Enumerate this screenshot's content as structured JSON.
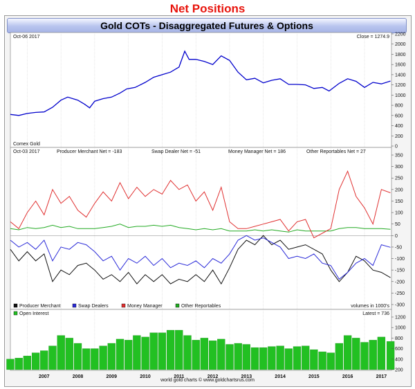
{
  "page": {
    "title": "Net Positions"
  },
  "header": {
    "title": "Gold COTs - Disaggregated Futures & Options"
  },
  "footer": {
    "credit": "world gold charts © www.goldchartsrus.com"
  },
  "colors": {
    "gold": "#0000cc",
    "producer": "#111111",
    "swap": "#2a2ad8",
    "money": "#e03030",
    "other": "#22aa22",
    "oi": "#22c022"
  },
  "chart_data": [
    {
      "type": "line",
      "panel": "price",
      "date_label": "Oct-06  2017",
      "close_label": "Close = 1274.9",
      "instrument_label": "Comex Gold",
      "x_ticks": [
        "2007",
        "2008",
        "2009",
        "2010",
        "2011",
        "2012",
        "2013",
        "2014",
        "2015",
        "2016",
        "2017"
      ],
      "ylim": [
        0,
        2200
      ],
      "y_ticks": [
        0,
        200,
        400,
        600,
        800,
        1000,
        1200,
        1400,
        1600,
        1800,
        2000,
        2200
      ],
      "x": [
        2006.5,
        2006.75,
        2007.0,
        2007.25,
        2007.5,
        2007.75,
        2008.0,
        2008.2,
        2008.5,
        2008.7,
        2008.85,
        2009.0,
        2009.25,
        2009.5,
        2009.75,
        2009.95,
        2010.2,
        2010.5,
        2010.75,
        2011.0,
        2011.25,
        2011.5,
        2011.67,
        2011.8,
        2012.0,
        2012.25,
        2012.5,
        2012.75,
        2013.0,
        2013.25,
        2013.5,
        2013.75,
        2014.0,
        2014.25,
        2014.5,
        2014.75,
        2015.0,
        2015.25,
        2015.5,
        2015.75,
        2015.95,
        2016.25,
        2016.5,
        2016.75,
        2017.0,
        2017.25,
        2017.5,
        2017.77
      ],
      "series": [
        {
          "values": [
            620,
            600,
            640,
            660,
            670,
            760,
            900,
            960,
            900,
            820,
            750,
            880,
            930,
            960,
            1040,
            1120,
            1150,
            1250,
            1350,
            1400,
            1450,
            1550,
            1860,
            1700,
            1700,
            1660,
            1600,
            1770,
            1680,
            1450,
            1300,
            1330,
            1240,
            1290,
            1320,
            1210,
            1210,
            1200,
            1130,
            1150,
            1080,
            1230,
            1320,
            1270,
            1150,
            1250,
            1220,
            1275
          ]
        }
      ]
    },
    {
      "type": "line",
      "panel": "net_positions",
      "date_label": "Oct-03  2017",
      "ylim": [
        -300,
        350
      ],
      "y_ticks": [
        -300,
        -250,
        -200,
        -150,
        -100,
        -50,
        0,
        50,
        100,
        150,
        200,
        250,
        300,
        350
      ],
      "x": [
        2006.5,
        2006.75,
        2007.0,
        2007.25,
        2007.5,
        2007.75,
        2008.0,
        2008.25,
        2008.5,
        2008.75,
        2009.0,
        2009.25,
        2009.5,
        2009.75,
        2010.0,
        2010.25,
        2010.5,
        2010.75,
        2011.0,
        2011.25,
        2011.5,
        2011.75,
        2012.0,
        2012.25,
        2012.5,
        2012.75,
        2013.0,
        2013.25,
        2013.5,
        2013.75,
        2014.0,
        2014.25,
        2014.5,
        2014.75,
        2015.0,
        2015.25,
        2015.5,
        2015.75,
        2016.0,
        2016.25,
        2016.5,
        2016.75,
        2017.0,
        2017.25,
        2017.5,
        2017.77
      ],
      "series": [
        {
          "name": "Producer Merchant",
          "net_label": "Producer Merchant Net = -183",
          "values": [
            -60,
            -110,
            -70,
            -110,
            -80,
            -200,
            -150,
            -170,
            -130,
            -120,
            -150,
            -190,
            -170,
            -200,
            -160,
            -210,
            -170,
            -200,
            -170,
            -210,
            -190,
            -200,
            -170,
            -200,
            -150,
            -210,
            -140,
            -60,
            -20,
            -40,
            0,
            -40,
            -20,
            -60,
            -50,
            -40,
            -60,
            -80,
            -150,
            -200,
            -160,
            -90,
            -110,
            -150,
            -160,
            -183
          ]
        },
        {
          "name": "Swap Dealers",
          "net_label": "Swap Dealer Net = -51",
          "values": [
            -20,
            -50,
            -30,
            -60,
            -20,
            -110,
            -50,
            -60,
            -30,
            -40,
            -70,
            -110,
            -90,
            -150,
            -100,
            -120,
            -90,
            -130,
            -100,
            -140,
            -120,
            -130,
            -110,
            -140,
            -100,
            -120,
            -80,
            -20,
            0,
            -20,
            -10,
            -30,
            -50,
            -100,
            -90,
            -100,
            -80,
            -120,
            -130,
            -190,
            -160,
            -120,
            -100,
            -130,
            -40,
            -51
          ]
        },
        {
          "name": "Money Manager",
          "net_label": "Money Manager Net = 186",
          "values": [
            60,
            30,
            100,
            150,
            90,
            200,
            140,
            170,
            110,
            80,
            140,
            190,
            150,
            230,
            160,
            210,
            170,
            200,
            180,
            240,
            200,
            220,
            150,
            190,
            110,
            210,
            60,
            30,
            30,
            40,
            50,
            60,
            70,
            20,
            60,
            70,
            -10,
            10,
            30,
            200,
            280,
            170,
            120,
            50,
            200,
            186
          ]
        },
        {
          "name": "Other Reportables",
          "net_label": "Other Reportables Net = 27",
          "values": [
            30,
            25,
            35,
            30,
            35,
            45,
            35,
            40,
            30,
            30,
            30,
            35,
            40,
            50,
            35,
            40,
            40,
            45,
            40,
            45,
            35,
            30,
            25,
            30,
            25,
            30,
            20,
            20,
            20,
            25,
            20,
            25,
            20,
            15,
            25,
            20,
            20,
            20,
            20,
            30,
            35,
            35,
            30,
            30,
            30,
            27
          ]
        }
      ],
      "legend": "bottom-left",
      "units_label": "volumes in 1000's"
    },
    {
      "type": "bar",
      "panel": "open_interest",
      "series_name": "Open Interest",
      "latest_label": "Latest = 736",
      "ylim": [
        200,
        1200
      ],
      "y_ticks": [
        200,
        400,
        600,
        800,
        1000,
        1200
      ],
      "x": [
        2006.5,
        2006.75,
        2007.0,
        2007.25,
        2007.5,
        2007.75,
        2008.0,
        2008.25,
        2008.5,
        2008.75,
        2009.0,
        2009.25,
        2009.5,
        2009.75,
        2010.0,
        2010.25,
        2010.5,
        2010.75,
        2011.0,
        2011.25,
        2011.5,
        2011.75,
        2012.0,
        2012.25,
        2012.5,
        2012.75,
        2013.0,
        2013.25,
        2013.5,
        2013.75,
        2014.0,
        2014.25,
        2014.5,
        2014.75,
        2015.0,
        2015.25,
        2015.5,
        2015.75,
        2016.0,
        2016.25,
        2016.5,
        2016.75,
        2017.0,
        2017.25,
        2017.5,
        2017.77
      ],
      "values": [
        400,
        420,
        460,
        520,
        560,
        650,
        850,
        800,
        700,
        600,
        600,
        650,
        700,
        780,
        760,
        850,
        820,
        900,
        900,
        950,
        950,
        850,
        760,
        800,
        750,
        780,
        680,
        700,
        680,
        620,
        620,
        640,
        650,
        600,
        640,
        650,
        580,
        540,
        520,
        700,
        850,
        800,
        720,
        760,
        820,
        736
      ]
    }
  ]
}
